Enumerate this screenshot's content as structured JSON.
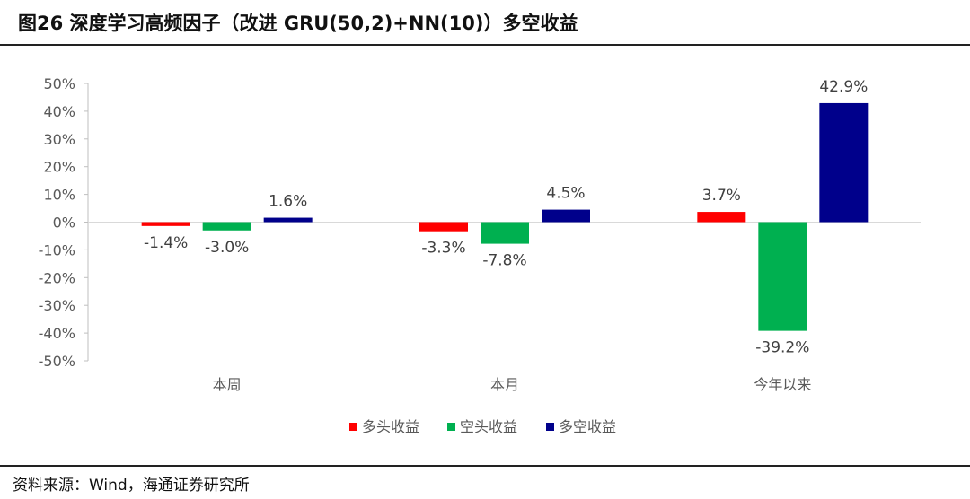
{
  "header": {
    "title": "图26 深度学习高频因子（改进 GRU(50,2)+NN(10)）多空收益"
  },
  "footer": {
    "source": "资料来源：Wind，海通证券研究所"
  },
  "chart_data": {
    "type": "bar",
    "categories": [
      "本周",
      "本月",
      "今年以来"
    ],
    "series": [
      {
        "name": "多头收益",
        "color": "#ff0000",
        "values": [
          -1.4,
          -3.3,
          3.7
        ],
        "labels": [
          "-1.4%",
          "-3.3%",
          "3.7%"
        ]
      },
      {
        "name": "空头收益",
        "color": "#00b050",
        "values": [
          -3.0,
          -7.8,
          -39.2
        ],
        "labels": [
          "-3.0%",
          "-7.8%",
          "-39.2%"
        ]
      },
      {
        "name": "多空收益",
        "color": "#00008b",
        "values": [
          1.6,
          4.5,
          42.9
        ],
        "labels": [
          "1.6%",
          "4.5%",
          "42.9%"
        ]
      }
    ],
    "ylim": [
      -50,
      50
    ],
    "yticks": [
      50,
      40,
      30,
      20,
      10,
      0,
      -10,
      -20,
      -30,
      -40,
      -50
    ],
    "ytick_labels": [
      "50%",
      "40%",
      "30%",
      "20%",
      "10%",
      "0%",
      "-10%",
      "-20%",
      "-30%",
      "-40%",
      "-50%"
    ],
    "grid": false,
    "legend_position": "bottom"
  }
}
